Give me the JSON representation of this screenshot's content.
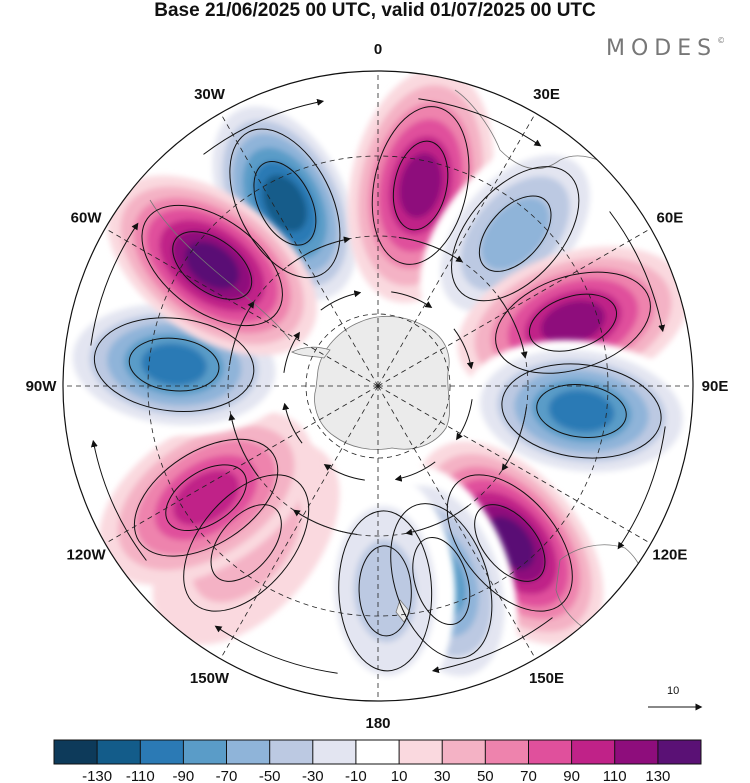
{
  "title": "Base 21/06/2025 00 UTC, valid 01/07/2025 00 UTC",
  "brand": {
    "text": "MODES",
    "mark": "©"
  },
  "map": {
    "projection": "south polar stereographic",
    "graticule": "dashed",
    "longitude_labels": [
      {
        "lon": 0,
        "text": "0"
      },
      {
        "lon": 30,
        "text": "30E"
      },
      {
        "lon": 60,
        "text": "60E"
      },
      {
        "lon": 90,
        "text": "90E"
      },
      {
        "lon": 120,
        "text": "120E"
      },
      {
        "lon": 150,
        "text": "150E"
      },
      {
        "lon": 180,
        "text": "180"
      },
      {
        "lon": -150,
        "text": "150W"
      },
      {
        "lon": -120,
        "text": "120W"
      },
      {
        "lon": -90,
        "text": "90W"
      },
      {
        "lon": -60,
        "text": "60W"
      },
      {
        "lon": -30,
        "text": "30W"
      }
    ],
    "anomaly_centers": [
      {
        "name": "low-30W",
        "lon": -27,
        "value": -130
      },
      {
        "name": "high-15E",
        "lon": 12,
        "value": 110
      },
      {
        "name": "low-40E",
        "lon": 42,
        "value": -70
      },
      {
        "name": "high-70E",
        "lon": 72,
        "value": 110
      },
      {
        "name": "low-100E",
        "lon": 97,
        "value": -110
      },
      {
        "name": "high-140E",
        "lon": 140,
        "value": 130
      },
      {
        "name": "low-170E",
        "lon": 162,
        "value": -90
      },
      {
        "name": "low-180",
        "lon": 178,
        "value": -50
      },
      {
        "name": "high-140W",
        "lon": -140,
        "value": 30
      },
      {
        "name": "high-120W",
        "lon": -123,
        "value": 90
      },
      {
        "name": "low-90W",
        "lon": -84,
        "value": -110
      },
      {
        "name": "high-60W",
        "lon": -54,
        "value": 130
      }
    ],
    "vector_reference": {
      "value": "10"
    },
    "colors": {
      "land": "#ebebeb",
      "coast": "#777777",
      "graticule": "#222222",
      "streamline": "#111111"
    }
  },
  "colorbar": {
    "colors": [
      "#0d3a5a",
      "#135c8a",
      "#2b7ab5",
      "#5a9cc8",
      "#8fb4d9",
      "#bcc9e2",
      "#e3e5f1",
      "#ffffff",
      "#fad9df",
      "#f4b2c5",
      "#ee83ad",
      "#e0509c",
      "#c02288",
      "#8e0d7c",
      "#5a1175"
    ],
    "ticks": [
      "-130",
      "-110",
      "-90",
      "-70",
      "-50",
      "-30",
      "-10",
      "10",
      "30",
      "50",
      "70",
      "90",
      "110",
      "130"
    ]
  }
}
